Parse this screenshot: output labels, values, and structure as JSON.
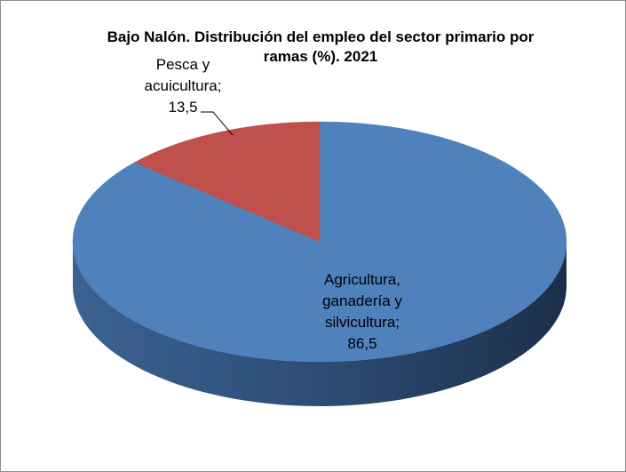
{
  "chart_data": {
    "type": "pie",
    "title": "Bajo Nalón. Distribución del empleo del sector primario por ramas (%). 2021",
    "title_line1": "Bajo Nalón. Distribución del empleo del sector primario por",
    "title_line2": "ramas (%). 2021",
    "slices": [
      {
        "label": "Agricultura, ganadería y silvicultura",
        "value": 86.5,
        "value_text": "86,5",
        "label_lines": [
          "Agricultura,",
          "ganadería y",
          "silvicultura;",
          "86,5"
        ],
        "color": "#4f81bd",
        "side_color": "#2e4f78"
      },
      {
        "label": "Pesca y acuicultura",
        "value": 13.5,
        "value_text": "13,5",
        "label_lines": [
          "Pesca y",
          "acuicultura;",
          "13,5"
        ],
        "color": "#c0504d",
        "side_color": "#7d2f2d"
      }
    ],
    "three_d": true,
    "legend": "none",
    "data_labels": "category; value"
  }
}
